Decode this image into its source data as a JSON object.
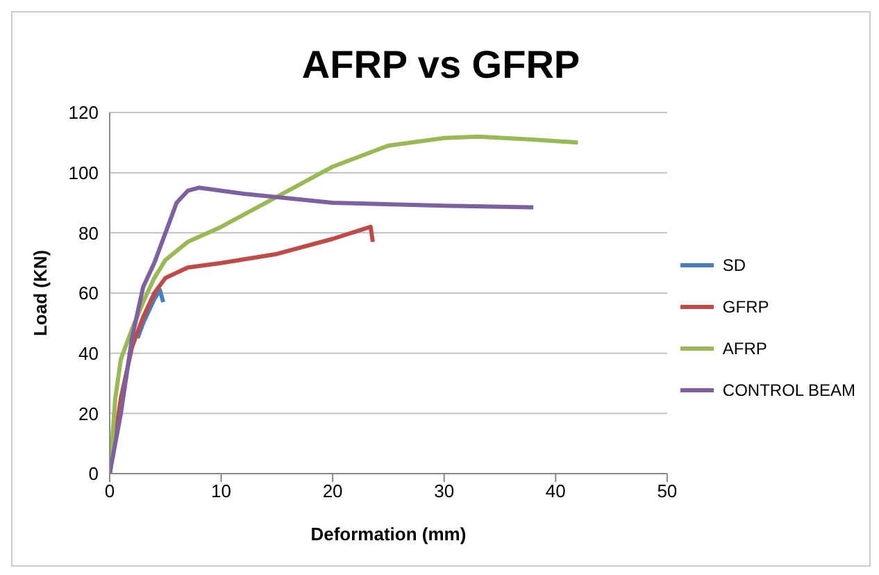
{
  "chart_data": {
    "type": "line",
    "title": "AFRP vs GFRP",
    "xlabel": "Deformation (mm)",
    "ylabel": "Load (KN)",
    "xlim": [
      0,
      50
    ],
    "xticks": [
      0,
      10,
      20,
      30,
      40,
      50
    ],
    "ylim": [
      0,
      120
    ],
    "yticks": [
      0,
      20,
      40,
      60,
      80,
      100,
      120
    ],
    "grid": "y",
    "legend": "right",
    "marker": "none",
    "line_style": "solid",
    "series": [
      {
        "name": "SD",
        "color": "#4a7ebb",
        "x": [
          2.5,
          3,
          4,
          4.5,
          4.8
        ],
        "values": [
          45,
          50,
          58,
          61,
          57
        ]
      },
      {
        "name": "GFRP",
        "color": "#be4b48",
        "x": [
          0,
          1,
          2,
          3,
          4,
          5,
          7,
          10,
          15,
          20,
          23.4,
          23.6
        ],
        "values": [
          0,
          25,
          42,
          52,
          60,
          65,
          68.5,
          70,
          73,
          78,
          82,
          77
        ]
      },
      {
        "name": "AFRP",
        "color": "#98b954",
        "x": [
          0,
          0.5,
          1,
          2,
          3,
          4,
          5,
          7,
          10,
          15,
          20,
          25,
          30,
          33,
          38,
          42
        ],
        "values": [
          0,
          25,
          38,
          48,
          57,
          65,
          71,
          77,
          82,
          92,
          102,
          109,
          111.5,
          112,
          111,
          110
        ]
      },
      {
        "name": "CONTROL BEAM",
        "color": "#7d60a0",
        "x": [
          0,
          1,
          2,
          3,
          4,
          5,
          6,
          7,
          8,
          12,
          20,
          30,
          38
        ],
        "values": [
          0,
          20,
          45,
          62,
          70,
          80,
          90,
          94,
          95,
          93,
          90,
          89,
          88.5
        ]
      }
    ]
  }
}
